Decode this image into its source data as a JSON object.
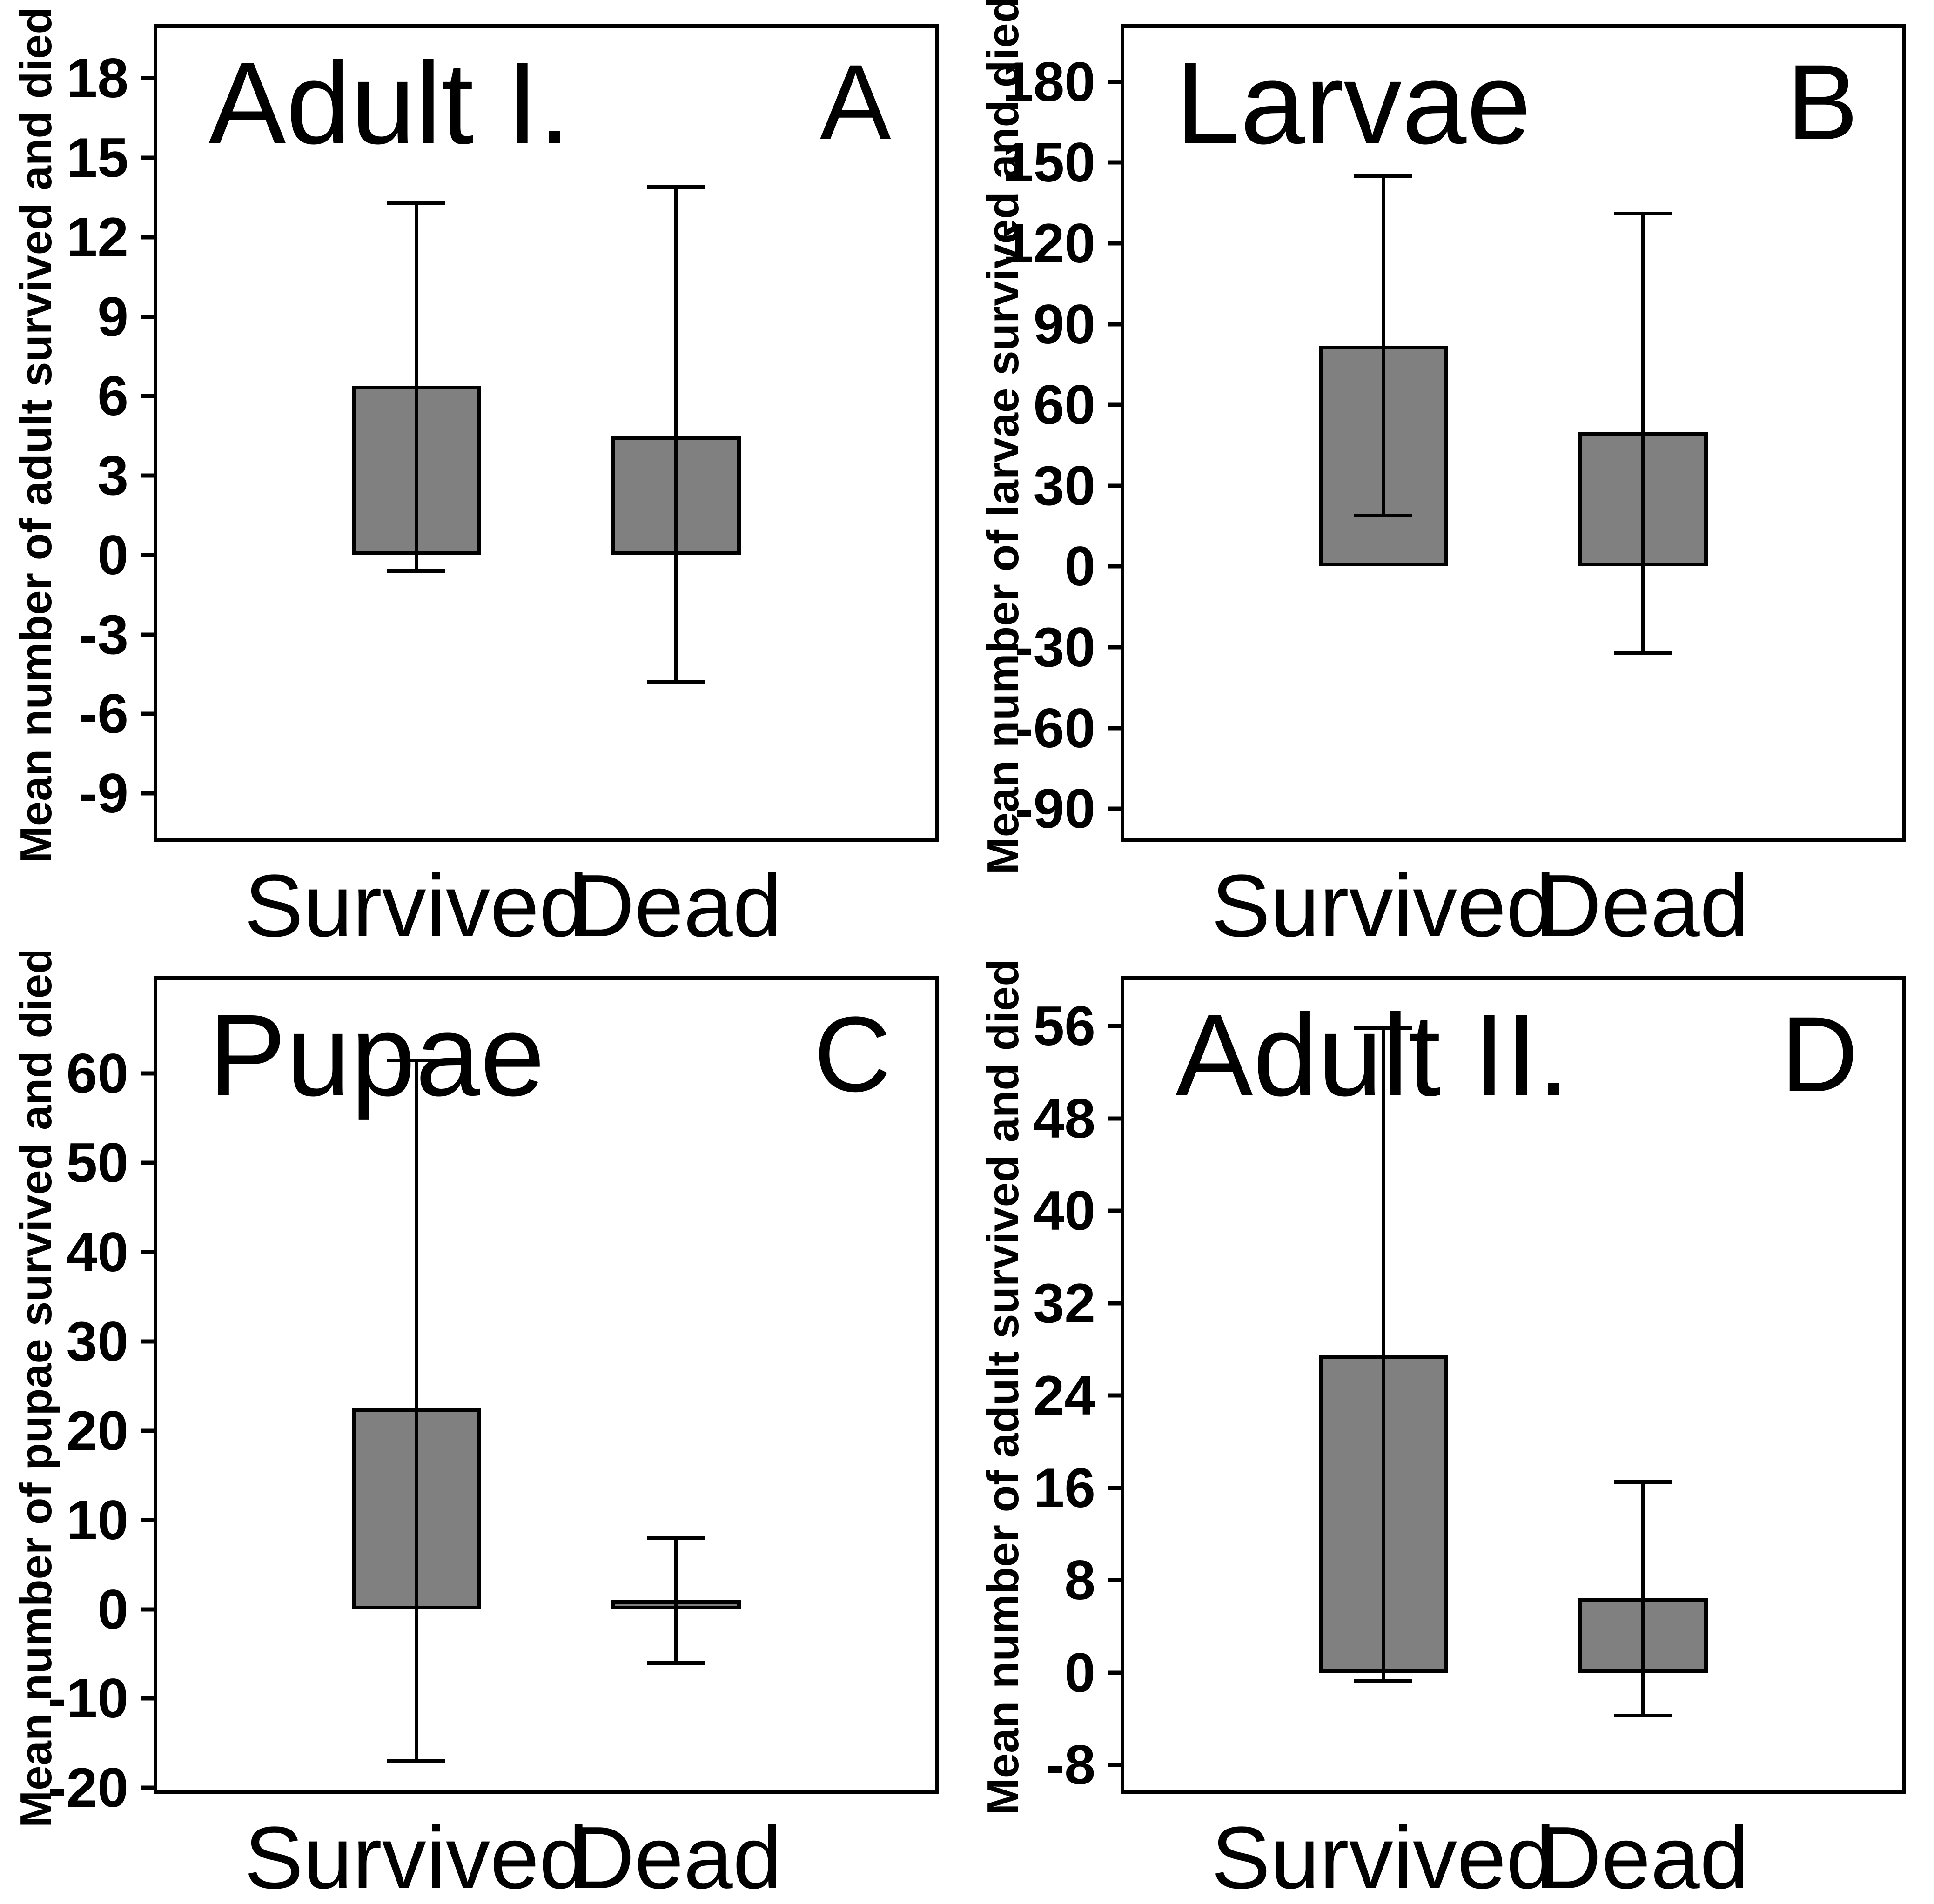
{
  "figure": {
    "background": "#ffffff",
    "bar_color": "#808080",
    "bar_border_color": "#000000",
    "grid": "off",
    "legend": "none"
  },
  "chart_data": [
    {
      "type": "bar",
      "panel_letter": "A",
      "title": "Adult I.",
      "ylabel": "Mean number of adult survived and died",
      "xlabel": "",
      "categories": [
        "Survived",
        "Dead"
      ],
      "values": [
        6.4,
        4.5
      ],
      "error_low": [
        -0.6,
        -4.8
      ],
      "error_high": [
        13.3,
        13.9
      ],
      "yticks": [
        18,
        15,
        12,
        9,
        6,
        3,
        0,
        -3,
        -6,
        -9
      ],
      "ylim": [
        -10.7,
        19.9
      ],
      "bar_color": "#808080",
      "bar_border": "#000000"
    },
    {
      "type": "bar",
      "panel_letter": "B",
      "title": "Larvae",
      "ylabel": "Mean number of larvae survived and died",
      "xlabel": "",
      "categories": [
        "Survived",
        "Dead"
      ],
      "values": [
        82,
        50
      ],
      "error_low": [
        19,
        -32
      ],
      "error_high": [
        145,
        131
      ],
      "yticks": [
        180,
        150,
        120,
        90,
        60,
        30,
        0,
        -30,
        -60,
        -90
      ],
      "ylim": [
        -101,
        200
      ],
      "bar_color": "#808080",
      "bar_border": "#000000"
    },
    {
      "type": "bar",
      "panel_letter": "C",
      "title": "Pupae",
      "ylabel": "Mean number of pupae survived and died",
      "xlabel": "",
      "categories": [
        "Survived",
        "Dead"
      ],
      "values": [
        22.5,
        1
      ],
      "error_low": [
        -17,
        -6
      ],
      "error_high": [
        61.5,
        8
      ],
      "yticks": [
        60,
        50,
        40,
        30,
        20,
        10,
        0,
        -10,
        -20
      ],
      "ylim": [
        -20.3,
        70.5
      ],
      "bar_color": "#808080",
      "bar_border": "#000000"
    },
    {
      "type": "bar",
      "panel_letter": "D",
      "title": "Adult II.",
      "ylabel": "Mean number of adult survived and died",
      "xlabel": "",
      "categories": [
        "Survived",
        "Dead"
      ],
      "values": [
        27.5,
        6.5
      ],
      "error_low": [
        -0.7,
        -3.7
      ],
      "error_high": [
        55.8,
        16.5
      ],
      "yticks": [
        56,
        48,
        40,
        32,
        24,
        16,
        8,
        0,
        -8
      ],
      "ylim": [
        -10.2,
        60
      ],
      "bar_color": "#808080",
      "bar_border": "#000000"
    }
  ]
}
